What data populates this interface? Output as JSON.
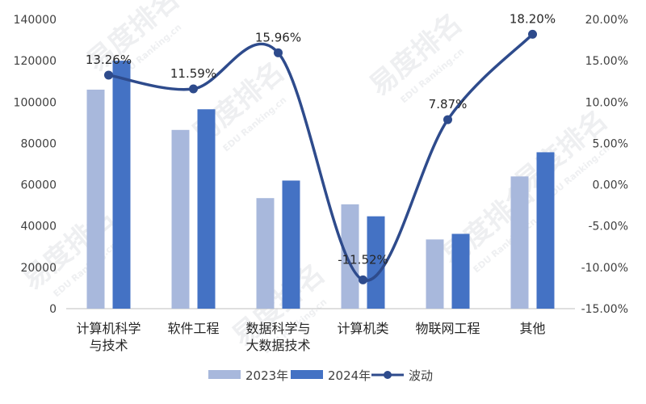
{
  "chart_data": {
    "type": "bar",
    "categories": [
      "计算机科学与技术",
      "软件工程",
      "数据科学与大数据技术",
      "计算机类",
      "物联网工程",
      "其他"
    ],
    "category_label_lines": [
      [
        "计算机科学",
        "与技术"
      ],
      [
        "软件工程"
      ],
      [
        "数据科学与",
        "大数据技术"
      ],
      [
        "计算机类"
      ],
      [
        "物联网工程"
      ],
      [
        "其他"
      ]
    ],
    "series": [
      {
        "name": "2023年",
        "type": "bar",
        "axis": "left",
        "color": "#a8b8dc",
        "values": [
          106000,
          86500,
          53500,
          50500,
          33500,
          64000
        ]
      },
      {
        "name": "2024年",
        "type": "bar",
        "axis": "left",
        "color": "#4472c4",
        "values": [
          120000,
          96500,
          62000,
          44700,
          36200,
          75700
        ]
      },
      {
        "name": "波动",
        "type": "line",
        "axis": "right",
        "color": "#2e4b8c",
        "values": [
          13.26,
          11.59,
          15.96,
          -11.52,
          7.87,
          18.2
        ],
        "labels": [
          "13.26%",
          "11.59%",
          "15.96%",
          "-11.52%",
          "7.87%",
          "18.20%"
        ]
      }
    ],
    "ylim_left": [
      0,
      140000
    ],
    "yticks_left": [
      "0",
      "20000",
      "40000",
      "60000",
      "80000",
      "100000",
      "120000",
      "140000"
    ],
    "ylim_right": [
      -15,
      20
    ],
    "yticks_right": [
      "-15.00%",
      "-10.00%",
      "-5.00%",
      "0.00%",
      "5.00%",
      "10.00%",
      "15.00%",
      "20.00%"
    ],
    "legend_position": "bottom",
    "grid": false
  },
  "watermark": {
    "text": "易度排名",
    "subtext": "EDU Ranking.cn"
  }
}
